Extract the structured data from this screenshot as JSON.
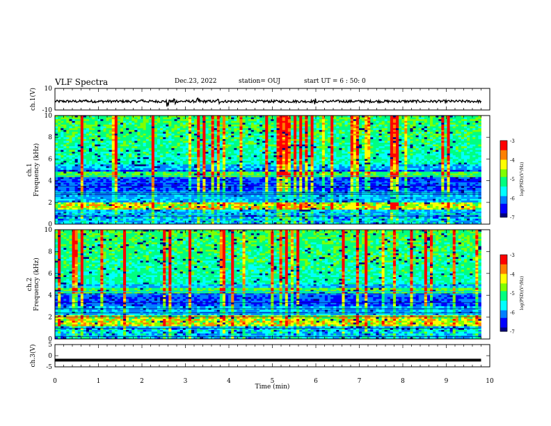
{
  "header": {
    "title": "VLF Spectra",
    "date": "Dec.23, 2022",
    "station": "station= OUJ",
    "start": "start  UT =   6 : 50: 0"
  },
  "chart_data": [
    {
      "type": "line",
      "panel": "waveform ch.1",
      "ylabel": "ch.1(V)",
      "ylim": [
        -10,
        10
      ],
      "yticks": [
        "10",
        "-10"
      ],
      "baseline": -2,
      "description_values": "noisy waveform centered near -2 V, amplitude about ±2 V with spikes to ±6 V",
      "spikes": [
        {
          "t": 0.7,
          "amp": 3
        },
        {
          "t": 2.0,
          "amp": 4
        },
        {
          "t": 2.6,
          "amp": 6
        },
        {
          "t": 2.75,
          "amp": 5
        },
        {
          "t": 3.3,
          "amp": 3
        },
        {
          "t": 3.75,
          "amp": 3
        },
        {
          "t": 6.0,
          "amp": 3
        }
      ]
    },
    {
      "type": "heatmap",
      "panel": "spectrogram ch.1",
      "xlabel": "",
      "ylabel": "ch.1\nFrequency  (kHz)",
      "ylim": [
        0,
        10
      ],
      "yticks": [
        "0",
        "2",
        "4",
        "6",
        "8",
        "10"
      ],
      "colorbar": {
        "label": "log(PSD)(V²/Hz)",
        "range": [
          -7,
          -3
        ],
        "ticks": [
          "-3",
          "-4",
          "-5",
          "-6",
          "-7"
        ]
      },
      "features": {
        "emission_band_khz": [
          4.4,
          4.8
        ],
        "strong_band_khz": [
          1.3,
          2.0
        ],
        "broadband_above_khz": 5.5
      }
    },
    {
      "type": "heatmap",
      "panel": "spectrogram ch.2",
      "ylabel": "ch.2\nFrequency  (kHz)",
      "ylim": [
        0,
        10
      ],
      "yticks": [
        "0",
        "2",
        "4",
        "6",
        "8",
        "10"
      ],
      "colorbar": {
        "label": "log(PSD)(V²/Hz)",
        "range": [
          -7,
          -3
        ],
        "ticks": [
          "-3",
          "-4",
          "-5",
          "-6",
          "-7"
        ]
      },
      "features": {
        "emission_band_khz": [
          4.2,
          4.6
        ],
        "strong_band_khz": [
          1.2,
          2.2
        ],
        "broadband_above_khz": 5.0
      }
    },
    {
      "type": "line",
      "panel": "ch.3",
      "ylabel": "ch.3(V)",
      "ylim": [
        -5,
        5
      ],
      "yticks": [
        "5",
        "0",
        "-5"
      ],
      "x": [
        0,
        9.8
      ],
      "y": [
        -2,
        -2
      ]
    }
  ],
  "xaxis": {
    "xlabel": "Time  (min)",
    "xlim": [
      0,
      10
    ],
    "ticks": [
      "0",
      "1",
      "2",
      "3",
      "4",
      "5",
      "6",
      "7",
      "8",
      "9",
      "10"
    ]
  },
  "colors": {
    "cmap": [
      "#000080",
      "#0000ff",
      "#0080ff",
      "#00ffff",
      "#00ff80",
      "#80ff00",
      "#ffff00",
      "#ff8000",
      "#ff0000",
      "#ffffff"
    ]
  }
}
